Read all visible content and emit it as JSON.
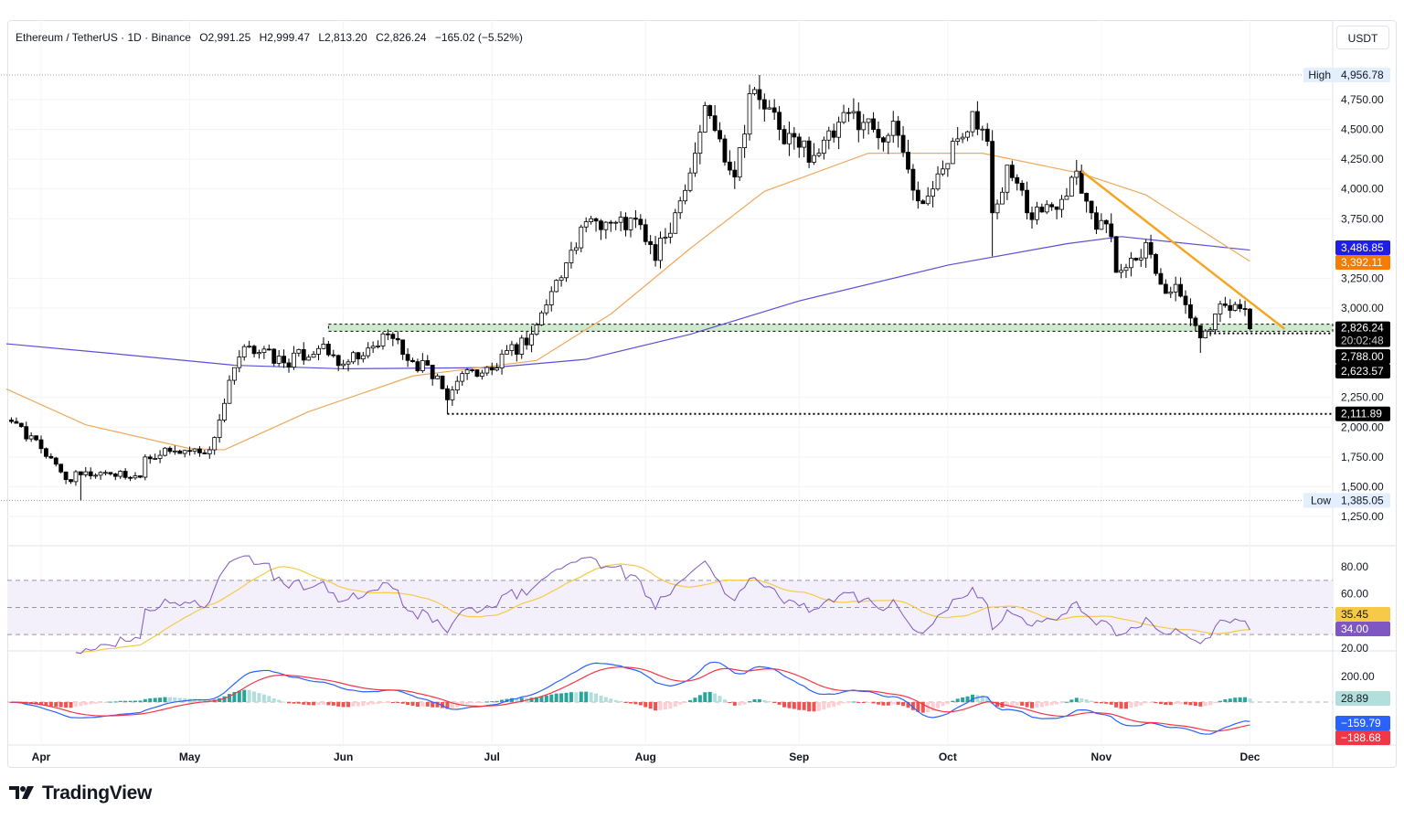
{
  "header": {
    "symbol": "Ethereum / TetherUS · 1D · Binance",
    "open": "O2,991.25",
    "high": "H2,999.47",
    "low": "L2,813.20",
    "close": "C2,826.24",
    "change": "−165.02 (−5.52%)",
    "currency": "USDT"
  },
  "branding": {
    "logo_text": "TradingView"
  },
  "colors": {
    "up": "#ffffff",
    "down": "#000000",
    "candle_border": "#000000",
    "ma_slow": "#5b4fd6",
    "ma_fast": "#f0a85a",
    "trendline": "#f5a623",
    "support_zone": "#cfe9cf",
    "rsi": "#7e57c2",
    "rsi_signal": "#f7c948",
    "macd": "#2962ff",
    "macd_signal": "#f23645",
    "hist_up": "#26a69a",
    "hist_down": "#ef5350"
  },
  "chart_data": [
    {
      "type": "candlestick",
      "title": "Ethereum / TetherUS · 1D · Binance",
      "ylabel": "USDT",
      "ylim": [
        1100,
        5100
      ],
      "y_ticks": [
        "4,750.00",
        "4,500.00",
        "4,250.00",
        "4,000.00",
        "3,750.00",
        "3,250.00",
        "3,000.00",
        "2,250.00",
        "2,000.00",
        "1,750.00",
        "1,500.00",
        "1,250.00"
      ],
      "y_tick_values": [
        4750,
        4500,
        4250,
        4000,
        3750,
        3250,
        3000,
        2250,
        2000,
        1750,
        1500,
        1250
      ],
      "x_ticks": [
        "Apr",
        "May",
        "Jun",
        "Jul",
        "Aug",
        "Sep",
        "Oct",
        "Nov",
        "Dec"
      ],
      "x_tick_dates": [
        "2025-04-01",
        "2025-05-01",
        "2025-06-01",
        "2025-07-01",
        "2025-08-01",
        "2025-09-01",
        "2025-10-01",
        "2025-11-01",
        "2025-12-01"
      ],
      "grid": true,
      "close_anchors": [
        [
          "2025-03-25",
          2060
        ],
        [
          "2025-04-01",
          1820
        ],
        [
          "2025-04-06",
          1560
        ],
        [
          "2025-04-09",
          1600
        ],
        [
          "2025-04-14",
          1620
        ],
        [
          "2025-04-21",
          1580
        ],
        [
          "2025-04-22",
          1750
        ],
        [
          "2025-04-28",
          1800
        ],
        [
          "2025-05-05",
          1810
        ],
        [
          "2025-05-08",
          2200
        ],
        [
          "2025-05-10",
          2500
        ],
        [
          "2025-05-13",
          2680
        ],
        [
          "2025-05-20",
          2540
        ],
        [
          "2025-05-27",
          2660
        ],
        [
          "2025-06-01",
          2530
        ],
        [
          "2025-06-05",
          2600
        ],
        [
          "2025-06-10",
          2780
        ],
        [
          "2025-06-15",
          2550
        ],
        [
          "2025-06-20",
          2430
        ],
        [
          "2025-06-22",
          2230
        ],
        [
          "2025-06-25",
          2450
        ],
        [
          "2025-07-01",
          2480
        ],
        [
          "2025-07-09",
          2780
        ],
        [
          "2025-07-11",
          2960
        ],
        [
          "2025-07-16",
          3380
        ],
        [
          "2025-07-21",
          3750
        ],
        [
          "2025-07-26",
          3720
        ],
        [
          "2025-07-31",
          3700
        ],
        [
          "2025-08-03",
          3400
        ],
        [
          "2025-08-08",
          3900
        ],
        [
          "2025-08-11",
          4300
        ],
        [
          "2025-08-13",
          4700
        ],
        [
          "2025-08-16",
          4420
        ],
        [
          "2025-08-19",
          4100
        ],
        [
          "2025-08-22",
          4800
        ],
        [
          "2025-08-24",
          4750
        ],
        [
          "2025-08-28",
          4500
        ],
        [
          "2025-09-01",
          4350
        ],
        [
          "2025-09-05",
          4300
        ],
        [
          "2025-09-12",
          4650
        ],
        [
          "2025-09-16",
          4500
        ],
        [
          "2025-09-21",
          4450
        ],
        [
          "2025-09-25",
          3900
        ],
        [
          "2025-09-28",
          4000
        ],
        [
          "2025-10-02",
          4400
        ],
        [
          "2025-10-06",
          4650
        ],
        [
          "2025-10-09",
          4400
        ],
        [
          "2025-10-10",
          3800
        ],
        [
          "2025-10-13",
          4200
        ],
        [
          "2025-10-17",
          3800
        ],
        [
          "2025-10-22",
          3850
        ],
        [
          "2025-10-27",
          4150
        ],
        [
          "2025-10-30",
          3800
        ],
        [
          "2025-11-03",
          3600
        ],
        [
          "2025-11-04",
          3300
        ],
        [
          "2025-11-10",
          3550
        ],
        [
          "2025-11-13",
          3200
        ],
        [
          "2025-11-17",
          3100
        ],
        [
          "2025-11-21",
          2750
        ],
        [
          "2025-11-24",
          2950
        ],
        [
          "2025-11-28",
          3030
        ],
        [
          "2025-11-30",
          2991.25
        ],
        [
          "2025-12-01",
          2826.24
        ]
      ],
      "wick_extremes": [
        {
          "date": "2025-04-09",
          "low": 1385.05
        },
        {
          "date": "2025-08-24",
          "high": 4956.78
        },
        {
          "date": "2025-10-10",
          "low": 3435
        },
        {
          "date": "2025-06-22",
          "low": 2111.89
        },
        {
          "date": "2025-11-21",
          "low": 2623.57
        },
        {
          "date": "2025-12-01",
          "high": 2999.47,
          "low": 2813.2
        }
      ],
      "series": [
        {
          "kind": "moving_average_slow",
          "values": [
            [
              "2025-03-25",
              2700
            ],
            [
              "2025-04-15",
              2620
            ],
            [
              "2025-05-10",
              2520
            ],
            [
              "2025-06-01",
              2490
            ],
            [
              "2025-07-01",
              2500
            ],
            [
              "2025-07-20",
              2570
            ],
            [
              "2025-08-10",
              2780
            ],
            [
              "2025-09-01",
              3060
            ],
            [
              "2025-10-01",
              3360
            ],
            [
              "2025-10-25",
              3540
            ],
            [
              "2025-11-05",
              3600
            ],
            [
              "2025-12-01",
              3486.85
            ]
          ]
        },
        {
          "kind": "moving_average_fast",
          "values": [
            [
              "2025-03-25",
              2320
            ],
            [
              "2025-04-10",
              2020
            ],
            [
              "2025-05-01",
              1820
            ],
            [
              "2025-05-08",
              1810
            ],
            [
              "2025-05-25",
              2130
            ],
            [
              "2025-06-15",
              2430
            ],
            [
              "2025-07-10",
              2560
            ],
            [
              "2025-07-25",
              2950
            ],
            [
              "2025-08-10",
              3500
            ],
            [
              "2025-08-25",
              3980
            ],
            [
              "2025-09-15",
              4300
            ],
            [
              "2025-10-08",
              4300
            ],
            [
              "2025-10-28",
              4130
            ],
            [
              "2025-11-10",
              3950
            ],
            [
              "2025-12-01",
              3392.11
            ]
          ]
        }
      ],
      "trendline": [
        [
          "2025-10-28",
          4150
        ],
        [
          "2025-12-08",
          2825
        ]
      ],
      "support_zone": {
        "from": "2025-05-29",
        "top": 2865,
        "bottom": 2805
      },
      "levels": [
        {
          "from": "2025-03-20",
          "value": 4956.78,
          "style": "dotted-grey"
        },
        {
          "from": "2025-03-20",
          "value": 1385.05,
          "style": "dotted-grey"
        },
        {
          "from": "2025-06-22",
          "value": 2111.89,
          "style": "dotted"
        },
        {
          "from": "2025-11-21",
          "value": 2788.0,
          "style": "dotted"
        }
      ],
      "badges": [
        {
          "label": "High",
          "value": "4,956.78",
          "price": 4956.78,
          "bg": "#e3effd",
          "fg": "#131722"
        },
        {
          "value": "3,486.85",
          "price": 3486.85,
          "bg": "#1e1ee8",
          "fg": "#ffffff"
        },
        {
          "value": "3,392.11",
          "price": 3392.11,
          "bg": "#f57c00",
          "fg": "#ffffff"
        },
        {
          "value": "2,826.24",
          "sub": "20:02:48",
          "price": 2826.24,
          "bg": "#000000",
          "fg": "#ffffff"
        },
        {
          "value": "2,788.00",
          "price": 2788,
          "bg": "#000000",
          "fg": "#ffffff"
        },
        {
          "value": "2,623.57",
          "price": 2623.57,
          "bg": "#000000",
          "fg": "#ffffff"
        },
        {
          "value": "2,111.89",
          "price": 2111.89,
          "bg": "#000000",
          "fg": "#ffffff"
        },
        {
          "label": "Low",
          "value": "1,385.05",
          "price": 1385.05,
          "bg": "#e3effd",
          "fg": "#131722"
        }
      ]
    },
    {
      "type": "line",
      "indicator": "RSI",
      "y_ticks": [
        "80.00",
        "60.00",
        "20.00"
      ],
      "y_tick_values": [
        80,
        60,
        20
      ],
      "bands": [
        70,
        50,
        30
      ],
      "last_values": [
        {
          "value": "35.45",
          "bg": "#f7c948",
          "fg": "#131722"
        },
        {
          "value": "34.00",
          "bg": "#7e57c2",
          "fg": "#ffffff"
        }
      ]
    },
    {
      "type": "bar+line",
      "indicator": "MACD",
      "y_ticks": [
        "200.00"
      ],
      "y_tick_values": [
        200
      ],
      "last_values": [
        {
          "value": "28.89",
          "bg": "#b2dfdb",
          "fg": "#131722"
        },
        {
          "value": "−159.79",
          "bg": "#2962ff",
          "fg": "#ffffff"
        },
        {
          "value": "−188.68",
          "bg": "#f23645",
          "fg": "#ffffff"
        }
      ]
    }
  ]
}
